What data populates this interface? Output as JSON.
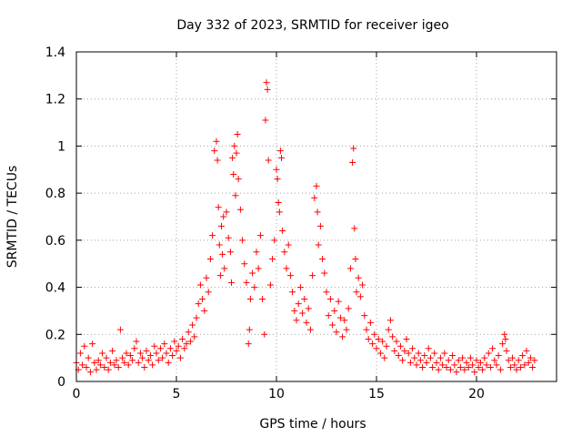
{
  "chart_data": {
    "type": "scatter",
    "title": "Day 332 of 2023, SRMTID for receiver igeo",
    "xlabel": "GPS time / hours",
    "ylabel": "SRMTID / TECUs",
    "xlim": [
      0,
      24
    ],
    "ylim": [
      0,
      1.4
    ],
    "xticks": [
      0,
      5,
      10,
      15,
      20
    ],
    "yticks": [
      0,
      0.2,
      0.4,
      0.6,
      0.8,
      1,
      1.2,
      1.4
    ],
    "xtick_labels": [
      "0",
      "5",
      "10",
      "15",
      "20"
    ],
    "ytick_labels": [
      "0",
      "0.2",
      "0.4",
      "0.6",
      "0.8",
      "1",
      "1.2",
      "1.4"
    ],
    "grid": true,
    "marker": "+",
    "series": [
      {
        "name": "SRMTID",
        "color": "#ff0000",
        "points": [
          [
            0.0,
            0.08
          ],
          [
            0.1,
            0.05
          ],
          [
            0.2,
            0.12
          ],
          [
            0.3,
            0.07
          ],
          [
            0.4,
            0.15
          ],
          [
            0.5,
            0.06
          ],
          [
            0.6,
            0.1
          ],
          [
            0.7,
            0.04
          ],
          [
            0.8,
            0.16
          ],
          [
            0.9,
            0.08
          ],
          [
            1.0,
            0.05
          ],
          [
            1.1,
            0.09
          ],
          [
            1.2,
            0.07
          ],
          [
            1.3,
            0.12
          ],
          [
            1.4,
            0.06
          ],
          [
            1.5,
            0.1
          ],
          [
            1.6,
            0.05
          ],
          [
            1.7,
            0.08
          ],
          [
            1.8,
            0.13
          ],
          [
            1.9,
            0.07
          ],
          [
            2.0,
            0.09
          ],
          [
            2.1,
            0.06
          ],
          [
            2.2,
            0.22
          ],
          [
            2.3,
            0.1
          ],
          [
            2.4,
            0.08
          ],
          [
            2.5,
            0.12
          ],
          [
            2.6,
            0.07
          ],
          [
            2.7,
            0.11
          ],
          [
            2.8,
            0.09
          ],
          [
            2.9,
            0.14
          ],
          [
            3.0,
            0.17
          ],
          [
            3.1,
            0.08
          ],
          [
            3.2,
            0.12
          ],
          [
            3.3,
            0.1
          ],
          [
            3.4,
            0.06
          ],
          [
            3.5,
            0.13
          ],
          [
            3.6,
            0.09
          ],
          [
            3.7,
            0.11
          ],
          [
            3.8,
            0.07
          ],
          [
            3.9,
            0.15
          ],
          [
            4.0,
            0.12
          ],
          [
            4.1,
            0.09
          ],
          [
            4.2,
            0.14
          ],
          [
            4.3,
            0.1
          ],
          [
            4.4,
            0.16
          ],
          [
            4.5,
            0.12
          ],
          [
            4.6,
            0.08
          ],
          [
            4.7,
            0.14
          ],
          [
            4.8,
            0.11
          ],
          [
            4.9,
            0.17
          ],
          [
            5.0,
            0.13
          ],
          [
            5.1,
            0.15
          ],
          [
            5.2,
            0.1
          ],
          [
            5.3,
            0.18
          ],
          [
            5.4,
            0.14
          ],
          [
            5.5,
            0.16
          ],
          [
            5.6,
            0.21
          ],
          [
            5.7,
            0.17
          ],
          [
            5.8,
            0.24
          ],
          [
            5.9,
            0.19
          ],
          [
            6.0,
            0.27
          ],
          [
            6.1,
            0.33
          ],
          [
            6.2,
            0.41
          ],
          [
            6.3,
            0.35
          ],
          [
            6.4,
            0.3
          ],
          [
            6.5,
            0.44
          ],
          [
            6.6,
            0.38
          ],
          [
            6.7,
            0.52
          ],
          [
            6.8,
            0.62
          ],
          [
            6.9,
            0.98
          ],
          [
            7.0,
            1.02
          ],
          [
            7.05,
            0.94
          ],
          [
            7.1,
            0.74
          ],
          [
            7.15,
            0.58
          ],
          [
            7.2,
            0.45
          ],
          [
            7.25,
            0.66
          ],
          [
            7.3,
            0.54
          ],
          [
            7.35,
            0.7
          ],
          [
            7.4,
            0.48
          ],
          [
            7.5,
            0.72
          ],
          [
            7.6,
            0.61
          ],
          [
            7.7,
            0.55
          ],
          [
            7.75,
            0.42
          ],
          [
            7.8,
            0.95
          ],
          [
            7.85,
            0.88
          ],
          [
            7.9,
            1.0
          ],
          [
            7.95,
            0.79
          ],
          [
            8.0,
            0.97
          ],
          [
            8.05,
            1.05
          ],
          [
            8.1,
            0.86
          ],
          [
            8.2,
            0.73
          ],
          [
            8.3,
            0.6
          ],
          [
            8.4,
            0.5
          ],
          [
            8.5,
            0.42
          ],
          [
            8.6,
            0.16
          ],
          [
            8.65,
            0.22
          ],
          [
            8.7,
            0.35
          ],
          [
            8.8,
            0.46
          ],
          [
            8.9,
            0.4
          ],
          [
            9.0,
            0.55
          ],
          [
            9.1,
            0.48
          ],
          [
            9.2,
            0.62
          ],
          [
            9.3,
            0.35
          ],
          [
            9.4,
            0.2
          ],
          [
            9.45,
            1.11
          ],
          [
            9.5,
            1.27
          ],
          [
            9.55,
            1.24
          ],
          [
            9.6,
            0.94
          ],
          [
            9.7,
            0.41
          ],
          [
            9.8,
            0.52
          ],
          [
            9.9,
            0.6
          ],
          [
            10.0,
            0.9
          ],
          [
            10.05,
            0.86
          ],
          [
            10.1,
            0.76
          ],
          [
            10.15,
            0.72
          ],
          [
            10.2,
            0.98
          ],
          [
            10.25,
            0.95
          ],
          [
            10.3,
            0.64
          ],
          [
            10.4,
            0.55
          ],
          [
            10.5,
            0.48
          ],
          [
            10.6,
            0.58
          ],
          [
            10.7,
            0.45
          ],
          [
            10.8,
            0.38
          ],
          [
            10.9,
            0.3
          ],
          [
            11.0,
            0.26
          ],
          [
            11.1,
            0.33
          ],
          [
            11.2,
            0.4
          ],
          [
            11.3,
            0.29
          ],
          [
            11.4,
            0.35
          ],
          [
            11.5,
            0.25
          ],
          [
            11.6,
            0.31
          ],
          [
            11.7,
            0.22
          ],
          [
            11.8,
            0.45
          ],
          [
            11.9,
            0.78
          ],
          [
            12.0,
            0.83
          ],
          [
            12.05,
            0.72
          ],
          [
            12.1,
            0.58
          ],
          [
            12.2,
            0.66
          ],
          [
            12.3,
            0.52
          ],
          [
            12.4,
            0.46
          ],
          [
            12.5,
            0.38
          ],
          [
            12.6,
            0.28
          ],
          [
            12.7,
            0.35
          ],
          [
            12.8,
            0.24
          ],
          [
            12.9,
            0.3
          ],
          [
            13.0,
            0.21
          ],
          [
            13.1,
            0.34
          ],
          [
            13.2,
            0.27
          ],
          [
            13.3,
            0.19
          ],
          [
            13.4,
            0.26
          ],
          [
            13.5,
            0.22
          ],
          [
            13.6,
            0.31
          ],
          [
            13.7,
            0.48
          ],
          [
            13.8,
            0.93
          ],
          [
            13.85,
            0.99
          ],
          [
            13.9,
            0.65
          ],
          [
            13.95,
            0.52
          ],
          [
            14.0,
            0.38
          ],
          [
            14.1,
            0.44
          ],
          [
            14.2,
            0.36
          ],
          [
            14.3,
            0.41
          ],
          [
            14.4,
            0.28
          ],
          [
            14.5,
            0.22
          ],
          [
            14.6,
            0.18
          ],
          [
            14.7,
            0.25
          ],
          [
            14.8,
            0.16
          ],
          [
            14.9,
            0.2
          ],
          [
            15.0,
            0.14
          ],
          [
            15.1,
            0.18
          ],
          [
            15.2,
            0.12
          ],
          [
            15.3,
            0.17
          ],
          [
            15.4,
            0.1
          ],
          [
            15.5,
            0.15
          ],
          [
            15.6,
            0.22
          ],
          [
            15.7,
            0.26
          ],
          [
            15.8,
            0.19
          ],
          [
            15.9,
            0.13
          ],
          [
            16.0,
            0.17
          ],
          [
            16.1,
            0.11
          ],
          [
            16.2,
            0.15
          ],
          [
            16.3,
            0.09
          ],
          [
            16.4,
            0.13
          ],
          [
            16.5,
            0.18
          ],
          [
            16.6,
            0.12
          ],
          [
            16.7,
            0.08
          ],
          [
            16.8,
            0.14
          ],
          [
            16.9,
            0.1
          ],
          [
            17.0,
            0.07
          ],
          [
            17.1,
            0.12
          ],
          [
            17.2,
            0.09
          ],
          [
            17.3,
            0.06
          ],
          [
            17.4,
            0.11
          ],
          [
            17.5,
            0.08
          ],
          [
            17.6,
            0.14
          ],
          [
            17.7,
            0.1
          ],
          [
            17.8,
            0.06
          ],
          [
            17.9,
            0.12
          ],
          [
            18.0,
            0.08
          ],
          [
            18.1,
            0.05
          ],
          [
            18.2,
            0.1
          ],
          [
            18.3,
            0.07
          ],
          [
            18.4,
            0.12
          ],
          [
            18.5,
            0.06
          ],
          [
            18.6,
            0.09
          ],
          [
            18.7,
            0.05
          ],
          [
            18.8,
            0.11
          ],
          [
            18.9,
            0.07
          ],
          [
            19.0,
            0.04
          ],
          [
            19.1,
            0.09
          ],
          [
            19.2,
            0.06
          ],
          [
            19.3,
            0.1
          ],
          [
            19.4,
            0.05
          ],
          [
            19.5,
            0.08
          ],
          [
            19.6,
            0.06
          ],
          [
            19.7,
            0.1
          ],
          [
            19.8,
            0.07
          ],
          [
            19.9,
            0.04
          ],
          [
            20.0,
            0.09
          ],
          [
            20.1,
            0.06
          ],
          [
            20.2,
            0.08
          ],
          [
            20.3,
            0.05
          ],
          [
            20.4,
            0.1
          ],
          [
            20.5,
            0.07
          ],
          [
            20.6,
            0.12
          ],
          [
            20.7,
            0.06
          ],
          [
            20.8,
            0.14
          ],
          [
            20.9,
            0.09
          ],
          [
            21.0,
            0.07
          ],
          [
            21.1,
            0.11
          ],
          [
            21.2,
            0.05
          ],
          [
            21.3,
            0.16
          ],
          [
            21.4,
            0.2
          ],
          [
            21.45,
            0.18
          ],
          [
            21.5,
            0.13
          ],
          [
            21.6,
            0.09
          ],
          [
            21.7,
            0.06
          ],
          [
            21.8,
            0.1
          ],
          [
            21.9,
            0.07
          ],
          [
            22.0,
            0.05
          ],
          [
            22.1,
            0.09
          ],
          [
            22.2,
            0.06
          ],
          [
            22.3,
            0.11
          ],
          [
            22.4,
            0.07
          ],
          [
            22.5,
            0.13
          ],
          [
            22.6,
            0.08
          ],
          [
            22.7,
            0.1
          ],
          [
            22.8,
            0.06
          ],
          [
            22.9,
            0.09
          ]
        ]
      }
    ]
  }
}
